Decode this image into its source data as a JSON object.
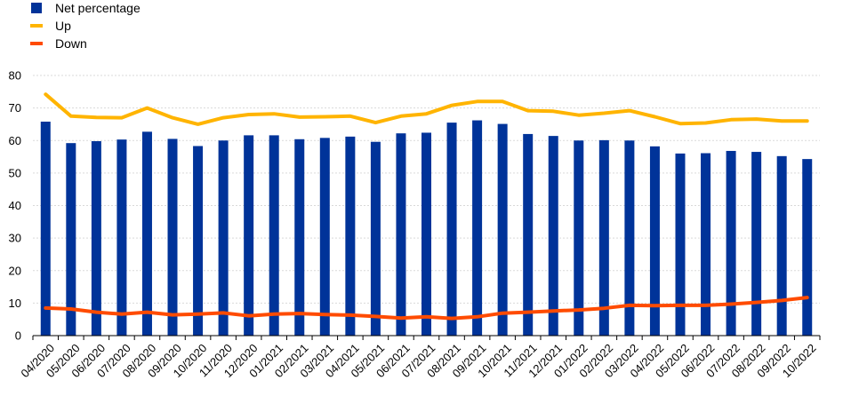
{
  "chart_data": {
    "type": "bar",
    "categories": [
      "04/2020",
      "05/2020",
      "06/2020",
      "07/2020",
      "08/2020",
      "09/2020",
      "10/2020",
      "11/2020",
      "12/2020",
      "01/2021",
      "02/2021",
      "03/2021",
      "04/2021",
      "05/2021",
      "06/2021",
      "07/2021",
      "08/2021",
      "09/2021",
      "10/2021",
      "11/2021",
      "12/2021",
      "01/2022",
      "02/2022",
      "03/2022",
      "04/2022",
      "05/2022",
      "06/2022",
      "07/2022",
      "08/2022",
      "09/2022",
      "10/2022"
    ],
    "series": [
      {
        "name": "Net percentage",
        "kind": "bar",
        "color": "#003399",
        "values": [
          65.8,
          59.2,
          59.8,
          60.3,
          62.7,
          60.5,
          58.3,
          60.0,
          61.6,
          61.6,
          60.4,
          60.8,
          61.2,
          59.6,
          62.2,
          62.4,
          65.5,
          66.2,
          65.1,
          62.0,
          61.4,
          60.0,
          60.1,
          60.0,
          58.2,
          56.0,
          56.1,
          56.8,
          56.5,
          55.2,
          54.3
        ]
      },
      {
        "name": "Up",
        "kind": "line",
        "color": "#FFB400",
        "values": [
          74.2,
          67.5,
          67.1,
          67.0,
          70.0,
          67.0,
          65.0,
          67.0,
          68.0,
          68.2,
          67.2,
          67.3,
          67.5,
          65.5,
          67.5,
          68.2,
          70.8,
          72.0,
          72.0,
          69.2,
          69.0,
          67.8,
          68.4,
          69.2,
          67.3,
          65.2,
          65.4,
          66.4,
          66.6,
          66.0,
          66.0
        ]
      },
      {
        "name": "Down",
        "kind": "line",
        "color": "#FF4B00",
        "values": [
          8.5,
          8.2,
          7.2,
          6.6,
          7.2,
          6.4,
          6.6,
          7.0,
          6.1,
          6.6,
          6.8,
          6.5,
          6.3,
          5.9,
          5.4,
          5.8,
          5.3,
          5.8,
          6.9,
          7.2,
          7.6,
          7.9,
          8.4,
          9.3,
          9.2,
          9.3,
          9.3,
          9.7,
          10.2,
          10.8,
          11.7
        ]
      }
    ],
    "ylim": [
      0,
      80
    ],
    "yticks": [
      0,
      10,
      20,
      30,
      40,
      50,
      60,
      70,
      80
    ],
    "grid": true,
    "legend_position": "top-left"
  }
}
